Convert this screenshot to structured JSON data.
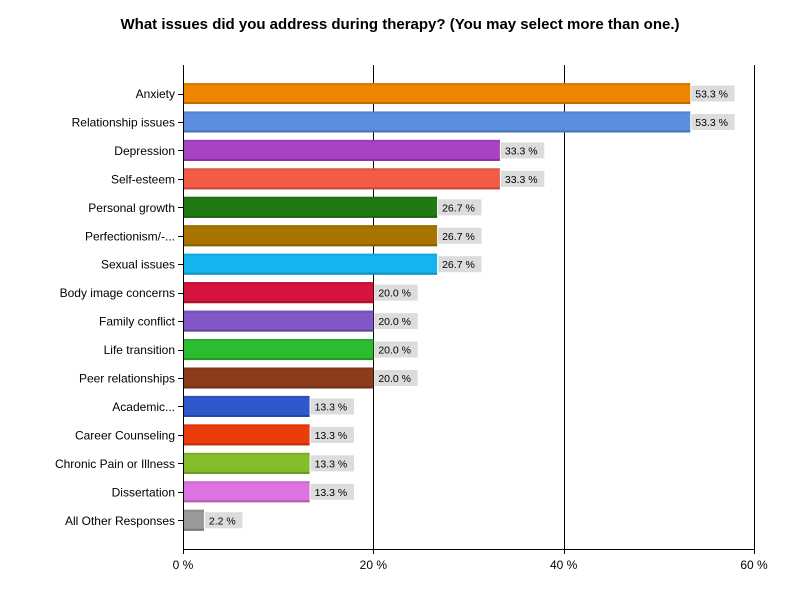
{
  "chart_data": {
    "type": "bar",
    "orientation": "horizontal",
    "title": "What issues did you address during therapy? (You may select more than one.)",
    "xlabel": "",
    "ylabel": "",
    "xlim": [
      0,
      60
    ],
    "x_ticks": [
      0,
      20,
      40,
      60
    ],
    "tick_suffix": " %",
    "grid": "vertical",
    "categories": [
      "Anxiety",
      "Relationship issues",
      "Depression",
      "Self-esteem",
      "Personal growth",
      "Perfectionism/-...",
      "Sexual issues",
      "Body image concerns",
      "Family conflict",
      "Life transition",
      "Peer relationships",
      "Academic...",
      "Career Counseling",
      "Chronic Pain or Illness",
      "Dissertation",
      "All Other Responses"
    ],
    "values": [
      53.3,
      53.3,
      33.3,
      33.3,
      26.7,
      26.7,
      26.7,
      20.0,
      20.0,
      20.0,
      20.0,
      13.3,
      13.3,
      13.3,
      13.3,
      2.2
    ],
    "value_labels": [
      "53.3 %",
      "53.3 %",
      "33.3 %",
      "33.3 %",
      "26.7 %",
      "26.7 %",
      "26.7 %",
      "20.0 %",
      "20.0 %",
      "20.0 %",
      "20.0 %",
      "13.3 %",
      "13.3 %",
      "13.3 %",
      "13.3 %",
      "2.2 %"
    ],
    "colors": [
      "#ee8400",
      "#5b8ee0",
      "#a844c4",
      "#f25c44",
      "#1f7a12",
      "#a87400",
      "#14b4f0",
      "#d4143c",
      "#8058c8",
      "#2cbc30",
      "#8c3c1c",
      "#3058cc",
      "#ec3c0c",
      "#84bc2c",
      "#dc74e0",
      "#999999"
    ]
  }
}
